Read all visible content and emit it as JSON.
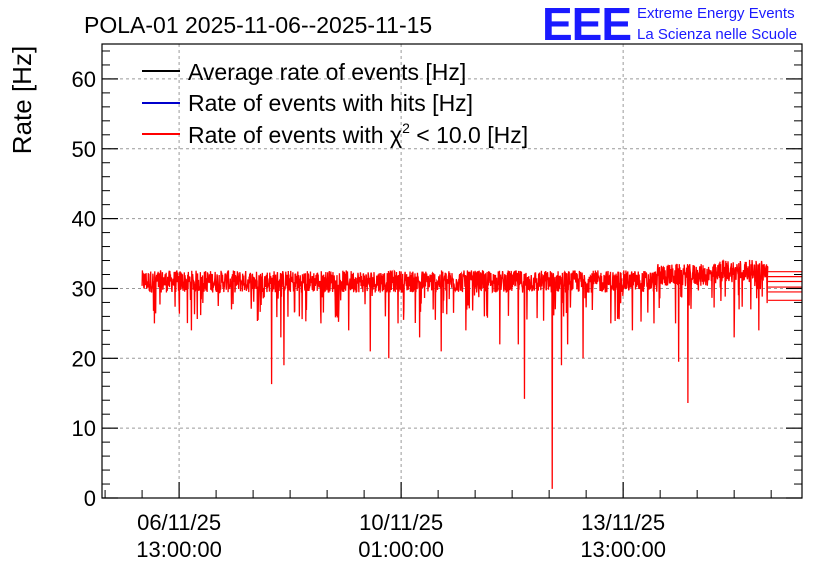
{
  "chart_data": {
    "type": "line",
    "title": "POLA-01 2025-11-06--2025-11-15",
    "ylabel": "Rate [Hz]",
    "xlabel": "",
    "ylim": [
      0,
      65
    ],
    "yticks": [
      0,
      10,
      20,
      30,
      40,
      50,
      60
    ],
    "xlim_hours": [
      0,
      227
    ],
    "xticks": [
      {
        "hours": 25,
        "line1": "06/11/25",
        "line2": "13:00:00"
      },
      {
        "hours": 97,
        "line1": "10/11/25",
        "line2": "01:00:00"
      },
      {
        "hours": 169,
        "line1": "13/11/25",
        "line2": "13:00:00"
      }
    ],
    "legend": [
      {
        "label": "Average rate of events [Hz]",
        "color": "#000000"
      },
      {
        "label": "Rate of events with hits [Hz]",
        "color": "#0000cc"
      },
      {
        "label_prefix": "Rate of events with ",
        "label_chi": "χ",
        "label_sup": "2",
        "label_suffix": " < 10.0 [Hz]",
        "color": "#ff0000"
      }
    ],
    "series": [
      {
        "name": "Rate of events with chi2 < 10.0 [Hz]",
        "color": "#ff0000",
        "start_hours": 13,
        "end_hours": 216,
        "baseline": 31.0,
        "noise_amp": 1.6,
        "dips": [
          [
            17,
            25
          ],
          [
            25,
            28
          ],
          [
            29,
            24
          ],
          [
            42,
            27
          ],
          [
            55,
            16.3
          ],
          [
            58,
            23
          ],
          [
            59,
            19
          ],
          [
            64,
            26
          ],
          [
            71,
            25
          ],
          [
            80,
            24
          ],
          [
            87,
            21
          ],
          [
            93,
            20
          ],
          [
            96,
            25
          ],
          [
            103,
            23
          ],
          [
            110,
            21
          ],
          [
            118,
            24
          ],
          [
            124,
            26
          ],
          [
            129,
            22
          ],
          [
            135,
            22
          ],
          [
            137,
            14.2
          ],
          [
            146,
            1.3
          ],
          [
            149,
            19
          ],
          [
            151,
            22
          ],
          [
            156,
            20
          ],
          [
            165,
            25
          ],
          [
            172,
            24
          ],
          [
            179,
            25
          ],
          [
            186,
            25
          ],
          [
            187,
            19.5
          ],
          [
            190,
            13.6
          ],
          [
            205,
            23
          ],
          [
            213,
            24
          ]
        ],
        "trail_levels": [
          28.3,
          29.5,
          30.2,
          31.0,
          31.7,
          32.4
        ]
      }
    ]
  },
  "logo": {
    "big": "EEE",
    "line1": "Extreme Energy Events",
    "line2": "La Scienza nelle Scuole",
    "color": "#1a1aff"
  }
}
